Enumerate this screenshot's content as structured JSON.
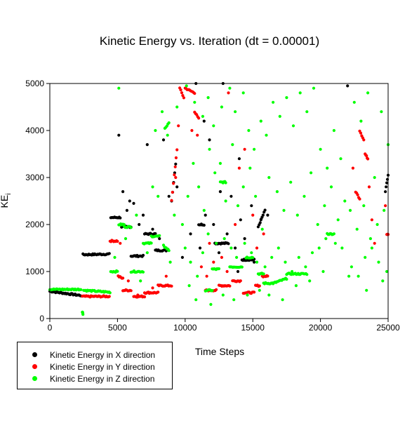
{
  "chart_data": {
    "type": "scatter",
    "title": "Kinetic Energy vs. Iteration (dt = 0.00001)",
    "xlabel": "Time Steps",
    "ylabel": "KE",
    "ylabel_subscript": "i",
    "xlim": [
      0,
      25000
    ],
    "ylim": [
      0,
      5000
    ],
    "xticks": [
      0,
      5000,
      10000,
      15000,
      20000,
      25000
    ],
    "yticks": [
      0,
      1000,
      2000,
      3000,
      4000,
      5000
    ],
    "grid": false,
    "legend_position": "bottom-left",
    "series": [
      {
        "name": "Kinetic Energy in X direction",
        "color": "#000000",
        "segments": [
          [
            0,
            580,
            2300,
            490
          ],
          [
            2450,
            1360,
            4400,
            1370
          ],
          [
            4500,
            2150,
            5200,
            2150
          ],
          [
            5300,
            1950,
            6000,
            1950
          ],
          [
            6000,
            1330,
            6900,
            1330
          ],
          [
            7000,
            1800,
            7800,
            1800
          ],
          [
            7800,
            1450,
            8600,
            1450
          ],
          [
            9000,
            2500,
            9300,
            3300
          ],
          [
            11000,
            2000,
            11400,
            2000
          ],
          [
            12200,
            1600,
            13200,
            1600
          ],
          [
            14200,
            1250,
            15100,
            1250
          ],
          [
            15400,
            1950,
            15900,
            2300
          ],
          [
            24800,
            2700,
            25000,
            3050
          ]
        ],
        "points": [
          [
            5100,
            3900
          ],
          [
            5400,
            2700
          ],
          [
            5900,
            2500
          ],
          [
            6200,
            2450
          ],
          [
            6900,
            2200
          ],
          [
            7200,
            3700
          ],
          [
            7600,
            1900
          ],
          [
            8100,
            1700
          ],
          [
            8800,
            2600
          ],
          [
            9400,
            2800
          ],
          [
            10800,
            5000
          ],
          [
            11100,
            1500
          ],
          [
            11500,
            2200
          ],
          [
            11800,
            3800
          ],
          [
            12100,
            2000
          ],
          [
            12500,
            1400
          ],
          [
            12800,
            5000
          ],
          [
            13100,
            1800
          ],
          [
            13400,
            2600
          ],
          [
            13700,
            1500
          ],
          [
            14100,
            2100
          ],
          [
            14400,
            1700
          ],
          [
            14900,
            2400
          ],
          [
            15100,
            1200
          ],
          [
            15600,
            2100
          ],
          [
            16100,
            2200
          ],
          [
            11400,
            4200
          ],
          [
            12600,
            2700
          ],
          [
            14000,
            3400
          ],
          [
            22000,
            4950
          ],
          [
            9800,
            1300
          ],
          [
            10400,
            1800
          ],
          [
            13900,
            1000
          ],
          [
            6600,
            2000
          ],
          [
            5700,
            2300
          ],
          [
            8400,
            3800
          ]
        ]
      },
      {
        "name": "Kinetic Energy in Y direction",
        "color": "#ff0000",
        "segments": [
          [
            2400,
            470,
            4400,
            470
          ],
          [
            4450,
            1650,
            5000,
            1650
          ],
          [
            5050,
            900,
            5400,
            850
          ],
          [
            5400,
            600,
            6000,
            600
          ],
          [
            6200,
            470,
            7000,
            470
          ],
          [
            7000,
            550,
            8000,
            550
          ],
          [
            8000,
            700,
            9000,
            700
          ],
          [
            9000,
            2500,
            9400,
            3600
          ],
          [
            9600,
            4900,
            9900,
            4700
          ],
          [
            10000,
            4900,
            10700,
            4800
          ],
          [
            10700,
            4400,
            11000,
            4250
          ],
          [
            11500,
            600,
            12300,
            600
          ],
          [
            12500,
            700,
            13300,
            700
          ],
          [
            13500,
            800,
            14100,
            800
          ],
          [
            14300,
            550,
            15100,
            550
          ],
          [
            15200,
            700,
            15500,
            700
          ],
          [
            15700,
            900,
            16100,
            900
          ],
          [
            22600,
            2700,
            22900,
            2550
          ],
          [
            22900,
            4000,
            23200,
            3800
          ],
          [
            23300,
            3500,
            23500,
            3400
          ],
          [
            24900,
            1800,
            25000,
            1800
          ]
        ],
        "points": [
          [
            5200,
            1600
          ],
          [
            5800,
            800
          ],
          [
            6500,
            500
          ],
          [
            7600,
            650
          ],
          [
            8600,
            900
          ],
          [
            9300,
            3000
          ],
          [
            10500,
            4000
          ],
          [
            10900,
            3900
          ],
          [
            11200,
            1100
          ],
          [
            11600,
            900
          ],
          [
            12100,
            1200
          ],
          [
            12700,
            1300
          ],
          [
            13100,
            1000
          ],
          [
            13700,
            2000
          ],
          [
            14000,
            3200
          ],
          [
            14400,
            3600
          ],
          [
            15000,
            2200
          ],
          [
            15300,
            1500
          ],
          [
            15800,
            1800
          ],
          [
            23600,
            2800
          ],
          [
            23800,
            2100
          ],
          [
            24000,
            1600
          ],
          [
            24800,
            2400
          ],
          [
            22400,
            3200
          ],
          [
            13200,
            4800
          ],
          [
            11800,
            1600
          ],
          [
            9500,
            4100
          ]
        ]
      },
      {
        "name": "Kinetic Energy in Z direction",
        "color": "#00ff00",
        "segments": [
          [
            0,
            620,
            2300,
            620
          ],
          [
            2400,
            150,
            2450,
            100
          ],
          [
            2500,
            600,
            4450,
            560
          ],
          [
            4500,
            1000,
            5000,
            1000
          ],
          [
            5100,
            2000,
            5500,
            2000
          ],
          [
            5500,
            1950,
            6000,
            1950
          ],
          [
            6000,
            1000,
            6900,
            1000
          ],
          [
            6900,
            1600,
            7500,
            1600
          ],
          [
            7500,
            1750,
            8100,
            1750
          ],
          [
            8400,
            1550,
            8800,
            1450
          ],
          [
            8500,
            4050,
            8800,
            4150
          ],
          [
            11500,
            600,
            12000,
            600
          ],
          [
            12000,
            1050,
            12500,
            1050
          ],
          [
            12600,
            2900,
            13000,
            2900
          ],
          [
            13300,
            1100,
            14200,
            1100
          ],
          [
            14500,
            1300,
            15000,
            1300
          ],
          [
            15400,
            950,
            15800,
            950
          ],
          [
            15800,
            750,
            16500,
            750
          ],
          [
            16500,
            750,
            17500,
            850
          ],
          [
            17500,
            950,
            19000,
            950
          ],
          [
            20500,
            1800,
            21000,
            1800
          ]
        ],
        "points": [
          [
            5100,
            4900
          ],
          [
            7800,
            4000
          ],
          [
            8300,
            4400
          ],
          [
            8700,
            3900
          ],
          [
            9400,
            4500
          ],
          [
            10100,
            4950
          ],
          [
            10700,
            4600
          ],
          [
            11300,
            4300
          ],
          [
            11700,
            4700
          ],
          [
            12100,
            4100
          ],
          [
            12700,
            4500
          ],
          [
            13300,
            4900
          ],
          [
            13700,
            4400
          ],
          [
            14300,
            4800
          ],
          [
            14700,
            4000
          ],
          [
            15100,
            3600
          ],
          [
            15600,
            4200
          ],
          [
            16000,
            3900
          ],
          [
            16500,
            4600
          ],
          [
            17000,
            4300
          ],
          [
            17500,
            4700
          ],
          [
            18000,
            4100
          ],
          [
            18500,
            4800
          ],
          [
            19000,
            4400
          ],
          [
            19500,
            4900
          ],
          [
            20000,
            3600
          ],
          [
            20500,
            3200
          ],
          [
            21000,
            4000
          ],
          [
            21500,
            3400
          ],
          [
            22500,
            4600
          ],
          [
            23000,
            4200
          ],
          [
            23500,
            4800
          ],
          [
            24000,
            3000
          ],
          [
            24500,
            4400
          ],
          [
            25000,
            3700
          ],
          [
            9800,
            2000
          ],
          [
            10200,
            2600
          ],
          [
            10600,
            3300
          ],
          [
            11000,
            2800
          ],
          [
            11400,
            2300
          ],
          [
            11800,
            3600
          ],
          [
            12200,
            3100
          ],
          [
            12600,
            3300
          ],
          [
            13000,
            2500
          ],
          [
            13500,
            3700
          ],
          [
            13900,
            2400
          ],
          [
            14300,
            2800
          ],
          [
            14800,
            3200
          ],
          [
            15200,
            2600
          ],
          [
            15700,
            1900
          ],
          [
            16200,
            3000
          ],
          [
            16800,
            2700
          ],
          [
            17300,
            2300
          ],
          [
            17800,
            2900
          ],
          [
            18300,
            2200
          ],
          [
            18800,
            2600
          ],
          [
            19300,
            3100
          ],
          [
            19800,
            2000
          ],
          [
            20300,
            2400
          ],
          [
            20800,
            2800
          ],
          [
            21300,
            2100
          ],
          [
            21800,
            2500
          ],
          [
            22200,
            2300
          ],
          [
            22700,
            1900
          ],
          [
            23200,
            2400
          ],
          [
            23700,
            1700
          ],
          [
            24200,
            2000
          ],
          [
            24700,
            2300
          ],
          [
            10000,
            1500
          ],
          [
            10400,
            1200
          ],
          [
            10900,
            900
          ],
          [
            11300,
            1400
          ],
          [
            11700,
            1800
          ],
          [
            12300,
            1600
          ],
          [
            12900,
            1700
          ],
          [
            13400,
            1500
          ],
          [
            13800,
            1300
          ],
          [
            14400,
            1600
          ],
          [
            14900,
            1400
          ],
          [
            15300,
            1200
          ],
          [
            15900,
            1100
          ],
          [
            16400,
            1300
          ],
          [
            16900,
            1500
          ],
          [
            17400,
            1200
          ],
          [
            17900,
            1000
          ],
          [
            18400,
            1300
          ],
          [
            18900,
            1100
          ],
          [
            19400,
            1400
          ],
          [
            19900,
            1500
          ],
          [
            20400,
            1700
          ],
          [
            21100,
            1600
          ],
          [
            21600,
            1500
          ],
          [
            22300,
            1100
          ],
          [
            22800,
            900
          ],
          [
            23300,
            1300
          ],
          [
            23800,
            1500
          ],
          [
            24300,
            1200
          ],
          [
            24900,
            1000
          ],
          [
            10300,
            700
          ],
          [
            10800,
            400
          ],
          [
            11900,
            300
          ],
          [
            12800,
            500
          ],
          [
            13600,
            400
          ],
          [
            14600,
            500
          ],
          [
            15500,
            600
          ],
          [
            16200,
            500
          ],
          [
            17200,
            400
          ],
          [
            18200,
            700
          ],
          [
            19200,
            800
          ],
          [
            20200,
            1000
          ],
          [
            22100,
            900
          ],
          [
            23400,
            600
          ],
          [
            24600,
            800
          ],
          [
            4800,
            1300
          ],
          [
            5600,
            1700
          ],
          [
            6400,
            2200
          ],
          [
            7200,
            1400
          ],
          [
            8000,
            2600
          ],
          [
            8900,
            1200
          ],
          [
            9200,
            2200
          ],
          [
            7600,
            2800
          ],
          [
            6700,
            800
          ]
        ]
      }
    ]
  }
}
